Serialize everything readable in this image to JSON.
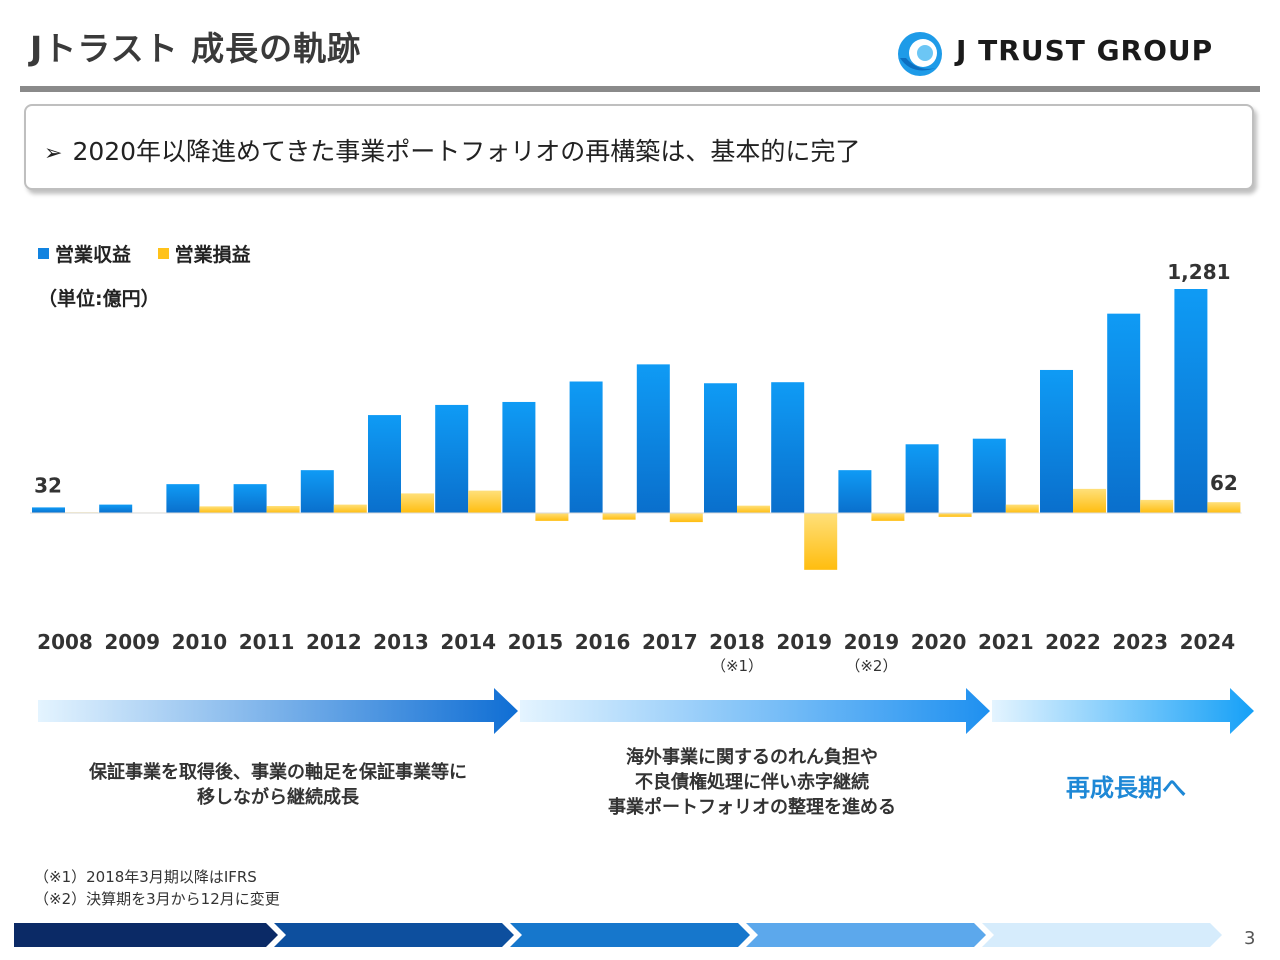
{
  "title": "Jトラスト 成長の軌跡",
  "logo": {
    "text": "J TRUST GROUP",
    "icon": "jtrust-swirl-logo-icon"
  },
  "callout": {
    "bullet": "➢",
    "text": "2020年以降進めてきた事業ポートフォリオの再構築は、基本的に完了"
  },
  "legend": {
    "revenue": "営業収益",
    "profit": "営業損益"
  },
  "unit": "（単位:億円）",
  "colors": {
    "revenue": "#1183e0",
    "profit": "#ffc21a",
    "accent": "#1e88d6"
  },
  "chart_data": {
    "type": "bar",
    "categories": [
      "2008",
      "2009",
      "2010",
      "2011",
      "2012",
      "2013",
      "2014",
      "2015",
      "2016",
      "2017",
      "2018",
      "2019",
      "2019",
      "2020",
      "2021",
      "2022",
      "2023",
      "2024"
    ],
    "category_notes": [
      "",
      "",
      "",
      "",
      "",
      "",
      "",
      "",
      "",
      "",
      "（※1）",
      "",
      "（※2）",
      "",
      "",
      "",
      "",
      ""
    ],
    "series": [
      {
        "name": "営業収益",
        "values": [
          32,
          48,
          165,
          165,
          245,
          560,
          618,
          635,
          752,
          850,
          742,
          748,
          245,
          393,
          425,
          818,
          1140,
          1281
        ]
      },
      {
        "name": "営業損益",
        "values": [
          4,
          3,
          38,
          40,
          48,
          112,
          128,
          -45,
          -38,
          -52,
          42,
          -325,
          -45,
          -22,
          48,
          138,
          75,
          62
        ]
      }
    ],
    "data_labels": {
      "revenue_2008": "32",
      "revenue_2024": "1,281",
      "profit_2024": "62"
    },
    "ylim": [
      -360,
      1320
    ]
  },
  "phases": [
    {
      "lines": [
        "保証事業を取得後、事業の軸足を保証事業等に",
        "移しながら継続成長"
      ]
    },
    {
      "lines": [
        "海外事業に関するのれん負担や",
        "不良債権処理に伴い赤字継続",
        "事業ポートフォリオの整理を進める"
      ]
    },
    {
      "lines": [
        "再成長期へ"
      ]
    }
  ],
  "footnotes": [
    "（※1）2018年3月期以降はIFRS",
    "（※2）決算期を3月から12月に変更"
  ],
  "page_number": "3"
}
